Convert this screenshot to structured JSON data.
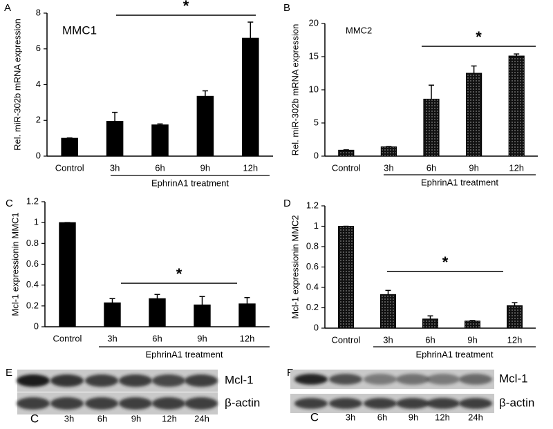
{
  "chart_data": [
    {
      "type": "bar",
      "panel": "A",
      "title": "MMC1",
      "y_label": "Rel. miR-302b mRNA expression",
      "categories": [
        "Control",
        "3h",
        "6h",
        "9h",
        "12h"
      ],
      "group_label": "EphrinA1 treatment",
      "annotation": "*",
      "values": [
        1.0,
        1.95,
        1.75,
        3.35,
        6.6
      ],
      "errors": [
        0.02,
        0.5,
        0.05,
        0.3,
        0.9
      ],
      "color": "#000000",
      "pattern": "solid",
      "ylim": [
        0,
        8
      ],
      "yticks": [
        0,
        2,
        4,
        6,
        8
      ]
    },
    {
      "type": "bar",
      "panel": "B",
      "title": "MMC2",
      "y_label": "Rel. miR-302b mRNA expression",
      "categories": [
        "Control",
        "3h",
        "6h",
        "9h",
        "12h"
      ],
      "group_label": "EphrinA1 treatment",
      "annotation": "*",
      "values": [
        0.9,
        1.4,
        8.6,
        12.5,
        15.1
      ],
      "errors": [
        0.05,
        0.05,
        2.1,
        1.1,
        0.3
      ],
      "color": "#000000",
      "pattern": "dotted",
      "ylim": [
        0,
        20
      ],
      "yticks": [
        0,
        5,
        10,
        15,
        20
      ]
    },
    {
      "type": "bar",
      "panel": "C",
      "y_label": "Mcl-1 expressionin MMC1",
      "categories": [
        "Control",
        "3h",
        "6h",
        "9h",
        "12h"
      ],
      "group_label": "EphrinA1 treatment",
      "annotation": "*",
      "values": [
        1.0,
        0.23,
        0.27,
        0.21,
        0.22
      ],
      "errors": [
        0.0,
        0.04,
        0.04,
        0.08,
        0.06
      ],
      "color": "#000000",
      "pattern": "solid",
      "ylim": [
        0,
        1.2
      ],
      "yticks": [
        0,
        0.2,
        0.4,
        0.6,
        0.8,
        1,
        1.2
      ]
    },
    {
      "type": "bar",
      "panel": "D",
      "y_label": "Mcl-1 expressionin MMC2",
      "categories": [
        "Control",
        "3h",
        "6h",
        "9h",
        "12h"
      ],
      "group_label": "EphrinA1 treatment",
      "annotation": "*",
      "values": [
        1.0,
        0.33,
        0.09,
        0.07,
        0.22
      ],
      "errors": [
        0.0,
        0.04,
        0.03,
        0.005,
        0.03
      ],
      "color": "#000000",
      "pattern": "dotted",
      "ylim": [
        0,
        1.2
      ],
      "yticks": [
        0,
        0.2,
        0.4,
        0.6,
        0.8,
        1,
        1.2
      ]
    }
  ],
  "blots": [
    {
      "panel": "E",
      "labels": [
        "Mcl-1",
        "β-actin"
      ],
      "lanes": [
        "C",
        "3h",
        "6h",
        "9h",
        "12h",
        "24h"
      ]
    },
    {
      "panel": "F",
      "labels": [
        "Mcl-1",
        "β-actin"
      ],
      "lanes": [
        "C",
        "3h",
        "6h",
        "9h",
        "12h",
        "24h"
      ]
    }
  ]
}
